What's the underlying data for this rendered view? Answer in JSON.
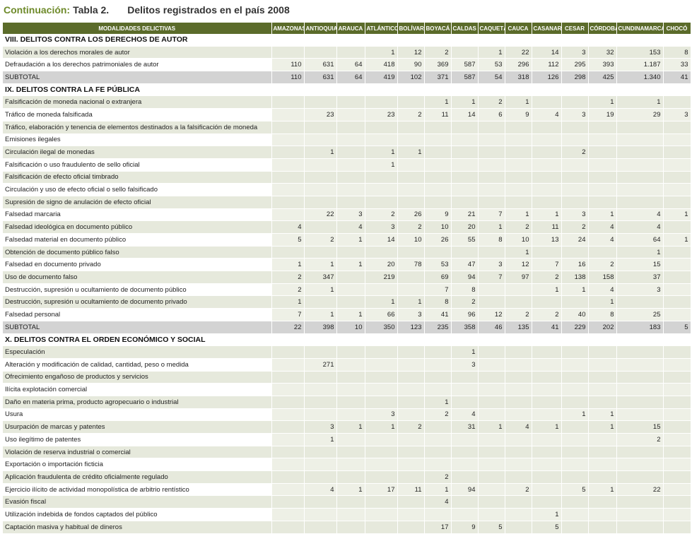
{
  "title": {
    "prefix": "Continuación:",
    "table": "Tabla 2.",
    "description": "Delitos registrados en el país 2008"
  },
  "columns": [
    "MODALIDADES DELICTIVAS",
    "AMAZONAS",
    "ANTIOQUIA",
    "ARAUCA",
    "ATLÁNTICO",
    "BOLÍVAR",
    "BOYACÁ",
    "CALDAS",
    "CAQUETÁ",
    "CAUCA",
    "CASANARE",
    "CESAR",
    "CÓRDOBA",
    "CUNDINAMARCA",
    "CHOCÓ"
  ],
  "rows": [
    {
      "type": "section",
      "label": "VIII. DELITOS CONTRA LOS DERECHOS DE AUTOR"
    },
    {
      "type": "data",
      "label": "Violación a los derechos morales de autor",
      "values": [
        "",
        "",
        "",
        "1",
        "12",
        "2",
        "",
        "1",
        "22",
        "14",
        "3",
        "32",
        "153",
        "8"
      ]
    },
    {
      "type": "data",
      "label": "Defraudación a los derechos patrimoniales de autor",
      "values": [
        "110",
        "631",
        "64",
        "418",
        "90",
        "369",
        "587",
        "53",
        "296",
        "112",
        "295",
        "393",
        "1.187",
        "33"
      ]
    },
    {
      "type": "subtotal",
      "label": "SUBTOTAL",
      "values": [
        "110",
        "631",
        "64",
        "419",
        "102",
        "371",
        "587",
        "54",
        "318",
        "126",
        "298",
        "425",
        "1.340",
        "41"
      ]
    },
    {
      "type": "section",
      "label": "IX. DELITOS CONTRA LA FE PÚBLICA"
    },
    {
      "type": "data",
      "label": "Falsificación de moneda nacional o extranjera",
      "values": [
        "",
        "",
        "",
        "",
        "",
        "1",
        "1",
        "2",
        "1",
        "",
        "",
        "1",
        "1",
        ""
      ]
    },
    {
      "type": "data",
      "label": "Tráfico de moneda falsificada",
      "values": [
        "",
        "23",
        "",
        "23",
        "2",
        "11",
        "14",
        "6",
        "9",
        "4",
        "3",
        "19",
        "29",
        "3"
      ]
    },
    {
      "type": "data",
      "label": "Tráfico, elaboración y tenencia de elementos destinados a la falsificación de moneda",
      "values": [
        "",
        "",
        "",
        "",
        "",
        "",
        "",
        "",
        "",
        "",
        "",
        "",
        "",
        ""
      ]
    },
    {
      "type": "data",
      "label": "Emisiones ilegales",
      "values": [
        "",
        "",
        "",
        "",
        "",
        "",
        "",
        "",
        "",
        "",
        "",
        "",
        "",
        ""
      ]
    },
    {
      "type": "data",
      "label": "Circulación ilegal de monedas",
      "values": [
        "",
        "1",
        "",
        "1",
        "1",
        "",
        "",
        "",
        "",
        "",
        "2",
        "",
        "",
        ""
      ]
    },
    {
      "type": "data",
      "label": "Falsificación o uso fraudulento de sello oficial",
      "values": [
        "",
        "",
        "",
        "1",
        "",
        "",
        "",
        "",
        "",
        "",
        "",
        "",
        "",
        ""
      ]
    },
    {
      "type": "data",
      "label": "Falsificación de efecto oficial timbrado",
      "values": [
        "",
        "",
        "",
        "",
        "",
        "",
        "",
        "",
        "",
        "",
        "",
        "",
        "",
        ""
      ]
    },
    {
      "type": "data",
      "label": "Circulación y uso de efecto oficial o sello falsificado",
      "values": [
        "",
        "",
        "",
        "",
        "",
        "",
        "",
        "",
        "",
        "",
        "",
        "",
        "",
        ""
      ]
    },
    {
      "type": "data",
      "label": "Supresión de signo de anulación de efecto oficial",
      "values": [
        "",
        "",
        "",
        "",
        "",
        "",
        "",
        "",
        "",
        "",
        "",
        "",
        "",
        ""
      ]
    },
    {
      "type": "data",
      "label": "Falsedad marcaria",
      "values": [
        "",
        "22",
        "3",
        "2",
        "26",
        "9",
        "21",
        "7",
        "1",
        "1",
        "3",
        "1",
        "4",
        "1"
      ]
    },
    {
      "type": "data",
      "label": "Falsedad ideológica en documento público",
      "values": [
        "4",
        "",
        "4",
        "3",
        "2",
        "10",
        "20",
        "1",
        "2",
        "11",
        "2",
        "4",
        "4",
        ""
      ]
    },
    {
      "type": "data",
      "label": "Falsedad material en documento público",
      "values": [
        "5",
        "2",
        "1",
        "14",
        "10",
        "26",
        "55",
        "8",
        "10",
        "13",
        "24",
        "4",
        "64",
        "1"
      ]
    },
    {
      "type": "data",
      "label": "Obtención de documento público falso",
      "values": [
        "",
        "",
        "",
        "",
        "",
        "",
        "",
        "",
        "1",
        "",
        "",
        "",
        "1",
        ""
      ]
    },
    {
      "type": "data",
      "label": "Falsedad en documento privado",
      "values": [
        "1",
        "1",
        "1",
        "20",
        "78",
        "53",
        "47",
        "3",
        "12",
        "7",
        "16",
        "2",
        "15",
        ""
      ]
    },
    {
      "type": "data",
      "label": "Uso de documento falso",
      "values": [
        "2",
        "347",
        "",
        "219",
        "",
        "69",
        "94",
        "7",
        "97",
        "2",
        "138",
        "158",
        "37",
        ""
      ]
    },
    {
      "type": "data",
      "label": "Destrucción, supresión u ocultamiento de documento público",
      "values": [
        "2",
        "1",
        "",
        "",
        "",
        "7",
        "8",
        "",
        "",
        "1",
        "1",
        "4",
        "3",
        ""
      ]
    },
    {
      "type": "data",
      "label": "Destrucción, supresión u ocultamiento de documento privado",
      "values": [
        "1",
        "",
        "",
        "1",
        "1",
        "8",
        "2",
        "",
        "",
        "",
        "",
        "1",
        "",
        ""
      ]
    },
    {
      "type": "data",
      "label": "Falsedad personal",
      "values": [
        "7",
        "1",
        "1",
        "66",
        "3",
        "41",
        "96",
        "12",
        "2",
        "2",
        "40",
        "8",
        "25",
        ""
      ]
    },
    {
      "type": "subtotal",
      "label": "SUBTOTAL",
      "values": [
        "22",
        "398",
        "10",
        "350",
        "123",
        "235",
        "358",
        "46",
        "135",
        "41",
        "229",
        "202",
        "183",
        "5"
      ]
    },
    {
      "type": "section",
      "label": "X. DELITOS CONTRA EL ORDEN ECONÓMICO Y SOCIAL"
    },
    {
      "type": "data",
      "label": "Especulación",
      "values": [
        "",
        "",
        "",
        "",
        "",
        "",
        "1",
        "",
        "",
        "",
        "",
        "",
        "",
        ""
      ]
    },
    {
      "type": "data",
      "label": "Alteración y modificación de calidad, cantidad, peso o medida",
      "values": [
        "",
        "271",
        "",
        "",
        "",
        "",
        "3",
        "",
        "",
        "",
        "",
        "",
        "",
        ""
      ]
    },
    {
      "type": "data",
      "label": "Ofrecimiento engañoso de productos y servicios",
      "values": [
        "",
        "",
        "",
        "",
        "",
        "",
        "",
        "",
        "",
        "",
        "",
        "",
        "",
        ""
      ]
    },
    {
      "type": "data",
      "label": "Ilícita explotación comercial",
      "values": [
        "",
        "",
        "",
        "",
        "",
        "",
        "",
        "",
        "",
        "",
        "",
        "",
        "",
        ""
      ]
    },
    {
      "type": "data",
      "label": "Daño en materia prima, producto agropecuario o industrial",
      "values": [
        "",
        "",
        "",
        "",
        "",
        "1",
        "",
        "",
        "",
        "",
        "",
        "",
        "",
        ""
      ]
    },
    {
      "type": "data",
      "label": "Usura",
      "values": [
        "",
        "",
        "",
        "3",
        "",
        "2",
        "4",
        "",
        "",
        "",
        "1",
        "1",
        "",
        ""
      ]
    },
    {
      "type": "data",
      "label": "Usurpación de marcas y patentes",
      "values": [
        "",
        "3",
        "1",
        "1",
        "2",
        "",
        "31",
        "1",
        "4",
        "1",
        "",
        "1",
        "15",
        ""
      ]
    },
    {
      "type": "data",
      "label": "Uso ilegítimo de patentes",
      "values": [
        "",
        "1",
        "",
        "",
        "",
        "",
        "",
        "",
        "",
        "",
        "",
        "",
        "2",
        ""
      ]
    },
    {
      "type": "data",
      "label": "Violación de reserva industrial o comercial",
      "values": [
        "",
        "",
        "",
        "",
        "",
        "",
        "",
        "",
        "",
        "",
        "",
        "",
        "",
        ""
      ]
    },
    {
      "type": "data",
      "label": "Exportación o importación ficticia",
      "values": [
        "",
        "",
        "",
        "",
        "",
        "",
        "",
        "",
        "",
        "",
        "",
        "",
        "",
        ""
      ]
    },
    {
      "type": "data",
      "label": "Aplicación fraudulenta de crédito oficialmente regulado",
      "values": [
        "",
        "",
        "",
        "",
        "",
        "2",
        "",
        "",
        "",
        "",
        "",
        "",
        "",
        ""
      ]
    },
    {
      "type": "data",
      "label": "Ejercicio ilícito de actividad monopolística de arbitrio rentístico",
      "values": [
        "",
        "4",
        "1",
        "17",
        "11",
        "1",
        "94",
        "",
        "2",
        "",
        "5",
        "1",
        "22",
        ""
      ]
    },
    {
      "type": "data",
      "label": "Evasión fiscal",
      "values": [
        "",
        "",
        "",
        "",
        "",
        "4",
        "",
        "",
        "",
        "",
        "",
        "",
        "",
        ""
      ]
    },
    {
      "type": "data",
      "label": "Utilización indebida de fondos captados del público",
      "values": [
        "",
        "",
        "",
        "",
        "",
        "",
        "",
        "",
        "",
        "1",
        "",
        "",
        "",
        ""
      ]
    },
    {
      "type": "data",
      "label": "Captación masiva y habitual de dineros",
      "values": [
        "",
        "",
        "",
        "",
        "",
        "17",
        "9",
        "5",
        "",
        "5",
        "",
        "",
        "",
        ""
      ]
    }
  ]
}
